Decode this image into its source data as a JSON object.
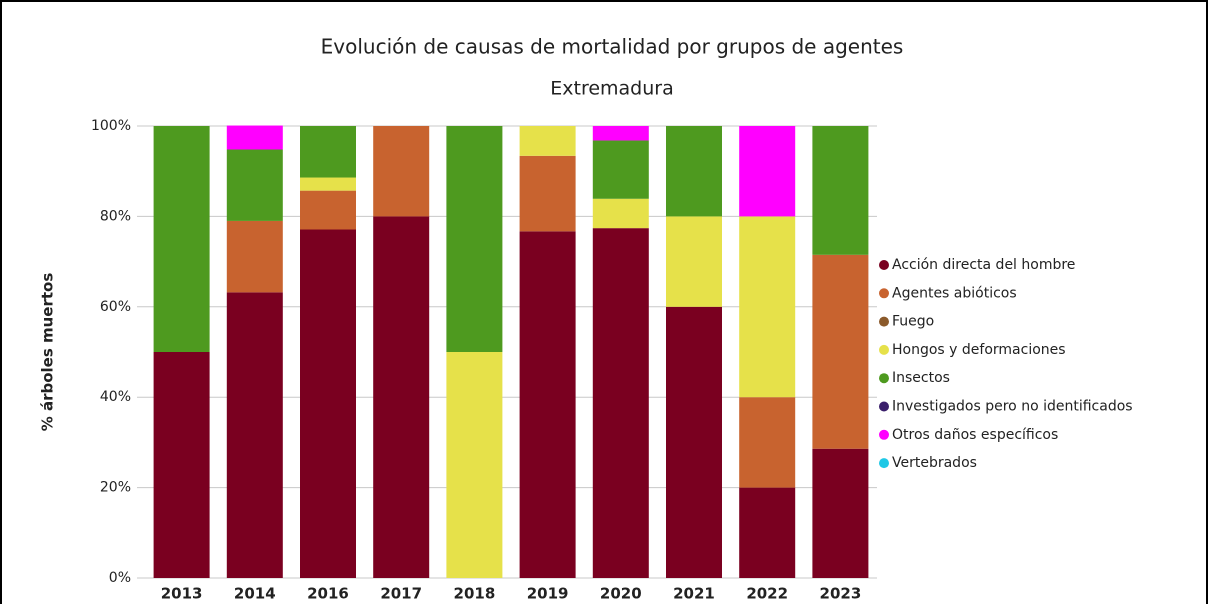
{
  "chart_data": {
    "type": "stacked_bar",
    "title": "Evolución de causas de mortalidad por grupos de agentes",
    "subtitle": "Extremadura",
    "y_label": "% árboles muertos",
    "categories": [
      "2013",
      "2014",
      "2016",
      "2017",
      "2018",
      "2019",
      "2020",
      "2021",
      "2022",
      "2023"
    ],
    "series": [
      {
        "name": "Acción directa del hombre",
        "color": "#7a0020",
        "values": [
          50,
          63.2,
          77.1,
          80,
          0,
          76.7,
          77.4,
          60,
          20,
          28.6
        ]
      },
      {
        "name": "Agentes abióticos",
        "color": "#c8632f",
        "values": [
          0,
          15.8,
          8.6,
          20,
          0,
          16.7,
          0,
          0,
          20,
          42.9
        ]
      },
      {
        "name": "Fuego",
        "color": "#8b5a2b",
        "values": [
          0,
          0,
          0,
          0,
          0,
          0,
          0,
          0,
          0,
          0
        ]
      },
      {
        "name": "Hongos y deformaciones",
        "color": "#e6e14a",
        "values": [
          0,
          0,
          2.9,
          0,
          50,
          6.6,
          6.5,
          20,
          40,
          0
        ]
      },
      {
        "name": "Insectos",
        "color": "#4e9a1f",
        "values": [
          50,
          15.8,
          11.4,
          0,
          50,
          0,
          12.9,
          20,
          0,
          28.5
        ]
      },
      {
        "name": "Investigados pero no identificados",
        "color": "#3a1f6b",
        "values": [
          0,
          0,
          0,
          0,
          0,
          0,
          0,
          0,
          0,
          0
        ]
      },
      {
        "name": "Otros daños específicos",
        "color": "#ff00ff",
        "values": [
          0,
          5.3,
          0,
          0,
          0,
          0,
          3.2,
          0,
          20,
          0
        ]
      },
      {
        "name": "Vertebrados",
        "color": "#1ec8e6",
        "values": [
          0,
          0,
          0,
          0,
          0,
          0,
          0,
          0,
          0,
          0
        ]
      }
    ],
    "ylim": [
      0,
      100
    ],
    "yticks": [
      {
        "value": 0,
        "label": "0%"
      },
      {
        "value": 20,
        "label": "20%"
      },
      {
        "value": 40,
        "label": "40%"
      },
      {
        "value": 60,
        "label": "60%"
      },
      {
        "value": 80,
        "label": "80%"
      },
      {
        "value": 100,
        "label": "100%"
      }
    ],
    "grid": true,
    "legend": "right"
  }
}
